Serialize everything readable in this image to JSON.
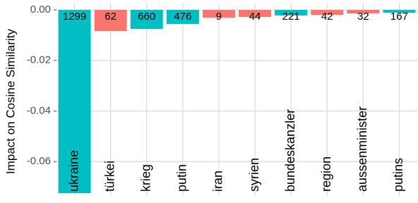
{
  "chart_data": {
    "type": "bar",
    "y_label": "Impact on Cosine Similarity",
    "categories": [
      "ukraine",
      "türkei",
      "krieg",
      "putin",
      "iran",
      "syrien",
      "bundeskanzler",
      "region",
      "aussenminister",
      "putins"
    ],
    "values": [
      -0.0725,
      -0.0084,
      -0.0075,
      -0.0056,
      -0.0031,
      -0.0028,
      -0.0022,
      -0.002,
      -0.0014,
      -0.0011
    ],
    "counts": [
      "1299",
      "62",
      "660",
      "476",
      "9",
      "44",
      "221",
      "42",
      "32",
      "167"
    ],
    "colors": [
      "#00bfc4",
      "#f8766d",
      "#00bfc4",
      "#00bfc4",
      "#f8766d",
      "#f8766d",
      "#00bfc4",
      "#f8766d",
      "#f8766d",
      "#00bfc4"
    ],
    "ylim": [
      -0.0736,
      0.0028
    ],
    "yticks": [
      {
        "value": 0,
        "label": "0.00"
      },
      -0.02,
      -0.04,
      -0.06
    ],
    "grid": true
  }
}
